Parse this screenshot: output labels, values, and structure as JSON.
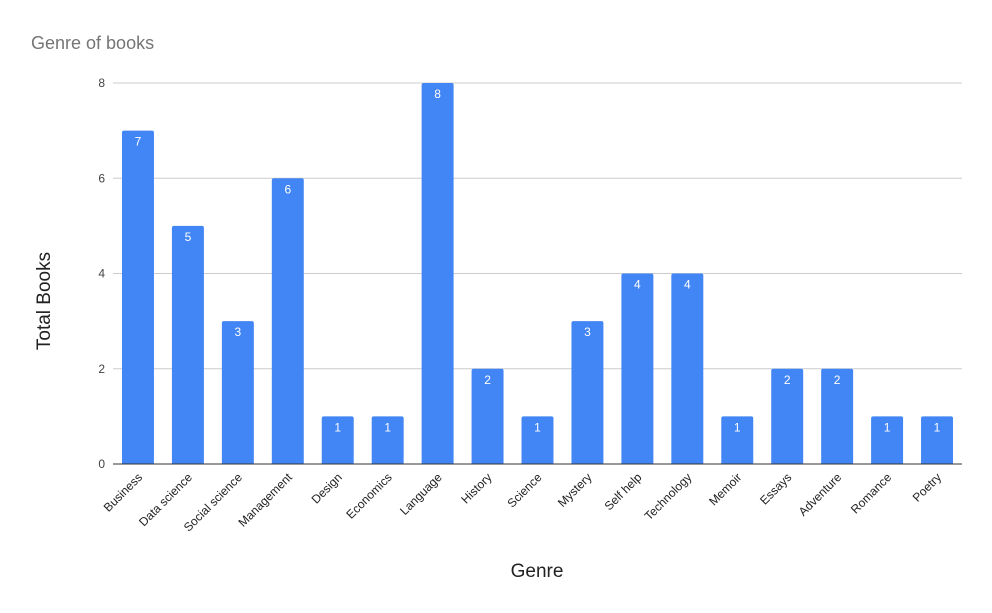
{
  "chart_data": {
    "type": "bar",
    "title": "Genre of books",
    "xlabel": "Genre",
    "ylabel": "Total Books",
    "ylim": [
      0,
      8
    ],
    "yticks": [
      0,
      2,
      4,
      6,
      8
    ],
    "grid": true,
    "bar_color": "#4285f4",
    "categories": [
      "Business",
      "Data science",
      "Social science",
      "Management",
      "Design",
      "Economics",
      "Language",
      "History",
      "Science",
      "Mystery",
      "Self help",
      "Technology",
      "Memoir",
      "Essays",
      "Adventure",
      "Romance",
      "Poetry"
    ],
    "values": [
      7,
      5,
      3,
      6,
      1,
      1,
      8,
      2,
      1,
      3,
      4,
      4,
      1,
      2,
      2,
      1,
      1
    ]
  }
}
